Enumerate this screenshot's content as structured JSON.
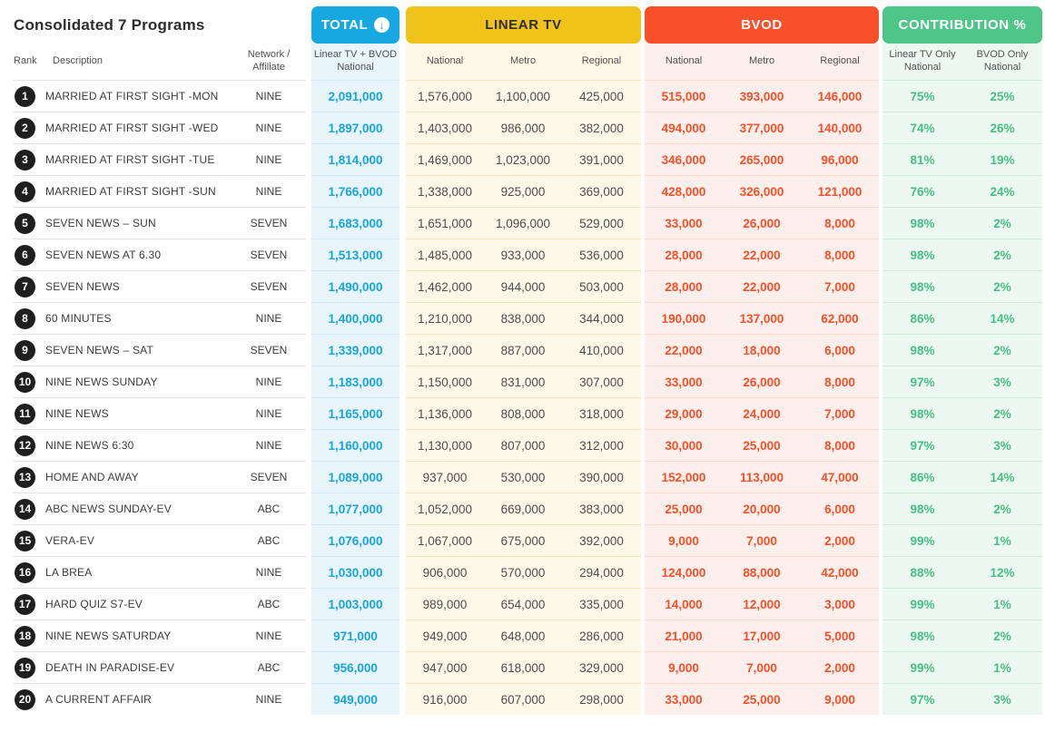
{
  "title": "Consolidated 7 Programs",
  "header": {
    "rank_label": "Rank",
    "description_label": "Description",
    "network_label": "Network / Affiliate",
    "total": {
      "label": "TOTAL",
      "sort_icon": "↓",
      "sub": "Linear TV + BVOD National",
      "color": "#17a7e1"
    },
    "linear": {
      "label": "LINEAR TV",
      "subs": [
        "National",
        "Metro",
        "Regional"
      ],
      "color": "#efc31a"
    },
    "bvod": {
      "label": "BVOD",
      "subs": [
        "National",
        "Metro",
        "Regional"
      ],
      "color": "#f8502b"
    },
    "contribution": {
      "label": "CONTRIBUTION %",
      "subs": [
        "Linear TV Only National",
        "BVOD Only National"
      ],
      "color": "#4dc687"
    }
  },
  "chart_data": {
    "type": "table",
    "title": "Consolidated 7 Programs",
    "columns": [
      "Rank",
      "Description",
      "Network / Affiliate",
      "Total Linear TV + BVOD National",
      "Linear TV National",
      "Linear TV Metro",
      "Linear TV Regional",
      "BVOD National",
      "BVOD Metro",
      "BVOD Regional",
      "Linear TV Only National",
      "BVOD Only National"
    ],
    "rows": [
      {
        "rank": "1",
        "description": "MARRIED AT FIRST SIGHT -MON",
        "network": "NINE",
        "total": "2,091,000",
        "linear_national": "1,576,000",
        "linear_metro": "1,100,000",
        "linear_regional": "425,000",
        "bvod_national": "515,000",
        "bvod_metro": "393,000",
        "bvod_regional": "146,000",
        "linear_pct": "75%",
        "bvod_pct": "25%"
      },
      {
        "rank": "2",
        "description": "MARRIED AT FIRST SIGHT -WED",
        "network": "NINE",
        "total": "1,897,000",
        "linear_national": "1,403,000",
        "linear_metro": "986,000",
        "linear_regional": "382,000",
        "bvod_national": "494,000",
        "bvod_metro": "377,000",
        "bvod_regional": "140,000",
        "linear_pct": "74%",
        "bvod_pct": "26%"
      },
      {
        "rank": "3",
        "description": "MARRIED AT FIRST SIGHT -TUE",
        "network": "NINE",
        "total": "1,814,000",
        "linear_national": "1,469,000",
        "linear_metro": "1,023,000",
        "linear_regional": "391,000",
        "bvod_national": "346,000",
        "bvod_metro": "265,000",
        "bvod_regional": "96,000",
        "linear_pct": "81%",
        "bvod_pct": "19%"
      },
      {
        "rank": "4",
        "description": "MARRIED AT FIRST SIGHT -SUN",
        "network": "NINE",
        "total": "1,766,000",
        "linear_national": "1,338,000",
        "linear_metro": "925,000",
        "linear_regional": "369,000",
        "bvod_national": "428,000",
        "bvod_metro": "326,000",
        "bvod_regional": "121,000",
        "linear_pct": "76%",
        "bvod_pct": "24%"
      },
      {
        "rank": "5",
        "description": "SEVEN NEWS – SUN",
        "network": "SEVEN",
        "total": "1,683,000",
        "linear_national": "1,651,000",
        "linear_metro": "1,096,000",
        "linear_regional": "529,000",
        "bvod_national": "33,000",
        "bvod_metro": "26,000",
        "bvod_regional": "8,000",
        "linear_pct": "98%",
        "bvod_pct": "2%"
      },
      {
        "rank": "6",
        "description": "SEVEN NEWS AT 6.30",
        "network": "SEVEN",
        "total": "1,513,000",
        "linear_national": "1,485,000",
        "linear_metro": "933,000",
        "linear_regional": "536,000",
        "bvod_national": "28,000",
        "bvod_metro": "22,000",
        "bvod_regional": "8,000",
        "linear_pct": "98%",
        "bvod_pct": "2%"
      },
      {
        "rank": "7",
        "description": "SEVEN NEWS",
        "network": "SEVEN",
        "total": "1,490,000",
        "linear_national": "1,462,000",
        "linear_metro": "944,000",
        "linear_regional": "503,000",
        "bvod_national": "28,000",
        "bvod_metro": "22,000",
        "bvod_regional": "7,000",
        "linear_pct": "98%",
        "bvod_pct": "2%"
      },
      {
        "rank": "8",
        "description": "60 MINUTES",
        "network": "NINE",
        "total": "1,400,000",
        "linear_national": "1,210,000",
        "linear_metro": "838,000",
        "linear_regional": "344,000",
        "bvod_national": "190,000",
        "bvod_metro": "137,000",
        "bvod_regional": "62,000",
        "linear_pct": "86%",
        "bvod_pct": "14%"
      },
      {
        "rank": "9",
        "description": "SEVEN NEWS – SAT",
        "network": "SEVEN",
        "total": "1,339,000",
        "linear_national": "1,317,000",
        "linear_metro": "887,000",
        "linear_regional": "410,000",
        "bvod_national": "22,000",
        "bvod_metro": "18,000",
        "bvod_regional": "6,000",
        "linear_pct": "98%",
        "bvod_pct": "2%"
      },
      {
        "rank": "10",
        "description": "NINE NEWS SUNDAY",
        "network": "NINE",
        "total": "1,183,000",
        "linear_national": "1,150,000",
        "linear_metro": "831,000",
        "linear_regional": "307,000",
        "bvod_national": "33,000",
        "bvod_metro": "26,000",
        "bvod_regional": "8,000",
        "linear_pct": "97%",
        "bvod_pct": "3%"
      },
      {
        "rank": "11",
        "description": "NINE NEWS",
        "network": "NINE",
        "total": "1,165,000",
        "linear_national": "1,136,000",
        "linear_metro": "808,000",
        "linear_regional": "318,000",
        "bvod_national": "29,000",
        "bvod_metro": "24,000",
        "bvod_regional": "7,000",
        "linear_pct": "98%",
        "bvod_pct": "2%"
      },
      {
        "rank": "12",
        "description": "NINE NEWS 6:30",
        "network": "NINE",
        "total": "1,160,000",
        "linear_national": "1,130,000",
        "linear_metro": "807,000",
        "linear_regional": "312,000",
        "bvod_national": "30,000",
        "bvod_metro": "25,000",
        "bvod_regional": "8,000",
        "linear_pct": "97%",
        "bvod_pct": "3%"
      },
      {
        "rank": "13",
        "description": "HOME AND AWAY",
        "network": "SEVEN",
        "total": "1,089,000",
        "linear_national": "937,000",
        "linear_metro": "530,000",
        "linear_regional": "390,000",
        "bvod_national": "152,000",
        "bvod_metro": "113,000",
        "bvod_regional": "47,000",
        "linear_pct": "86%",
        "bvod_pct": "14%"
      },
      {
        "rank": "14",
        "description": "ABC NEWS SUNDAY-EV",
        "network": "ABC",
        "total": "1,077,000",
        "linear_national": "1,052,000",
        "linear_metro": "669,000",
        "linear_regional": "383,000",
        "bvod_national": "25,000",
        "bvod_metro": "20,000",
        "bvod_regional": "6,000",
        "linear_pct": "98%",
        "bvod_pct": "2%"
      },
      {
        "rank": "15",
        "description": "VERA-EV",
        "network": "ABC",
        "total": "1,076,000",
        "linear_national": "1,067,000",
        "linear_metro": "675,000",
        "linear_regional": "392,000",
        "bvod_national": "9,000",
        "bvod_metro": "7,000",
        "bvod_regional": "2,000",
        "linear_pct": "99%",
        "bvod_pct": "1%"
      },
      {
        "rank": "16",
        "description": "LA BREA",
        "network": "NINE",
        "total": "1,030,000",
        "linear_national": "906,000",
        "linear_metro": "570,000",
        "linear_regional": "294,000",
        "bvod_national": "124,000",
        "bvod_metro": "88,000",
        "bvod_regional": "42,000",
        "linear_pct": "88%",
        "bvod_pct": "12%"
      },
      {
        "rank": "17",
        "description": "HARD QUIZ S7-EV",
        "network": "ABC",
        "total": "1,003,000",
        "linear_national": "989,000",
        "linear_metro": "654,000",
        "linear_regional": "335,000",
        "bvod_national": "14,000",
        "bvod_metro": "12,000",
        "bvod_regional": "3,000",
        "linear_pct": "99%",
        "bvod_pct": "1%"
      },
      {
        "rank": "18",
        "description": "NINE NEWS SATURDAY",
        "network": "NINE",
        "total": "971,000",
        "linear_national": "949,000",
        "linear_metro": "648,000",
        "linear_regional": "286,000",
        "bvod_national": "21,000",
        "bvod_metro": "17,000",
        "bvod_regional": "5,000",
        "linear_pct": "98%",
        "bvod_pct": "2%"
      },
      {
        "rank": "19",
        "description": "DEATH IN PARADISE-EV",
        "network": "ABC",
        "total": "956,000",
        "linear_national": "947,000",
        "linear_metro": "618,000",
        "linear_regional": "329,000",
        "bvod_national": "9,000",
        "bvod_metro": "7,000",
        "bvod_regional": "2,000",
        "linear_pct": "99%",
        "bvod_pct": "1%"
      },
      {
        "rank": "20",
        "description": "A CURRENT AFFAIR",
        "network": "NINE",
        "total": "949,000",
        "linear_national": "916,000",
        "linear_metro": "607,000",
        "linear_regional": "298,000",
        "bvod_national": "33,000",
        "bvod_metro": "25,000",
        "bvod_regional": "9,000",
        "linear_pct": "97%",
        "bvod_pct": "3%"
      }
    ]
  }
}
